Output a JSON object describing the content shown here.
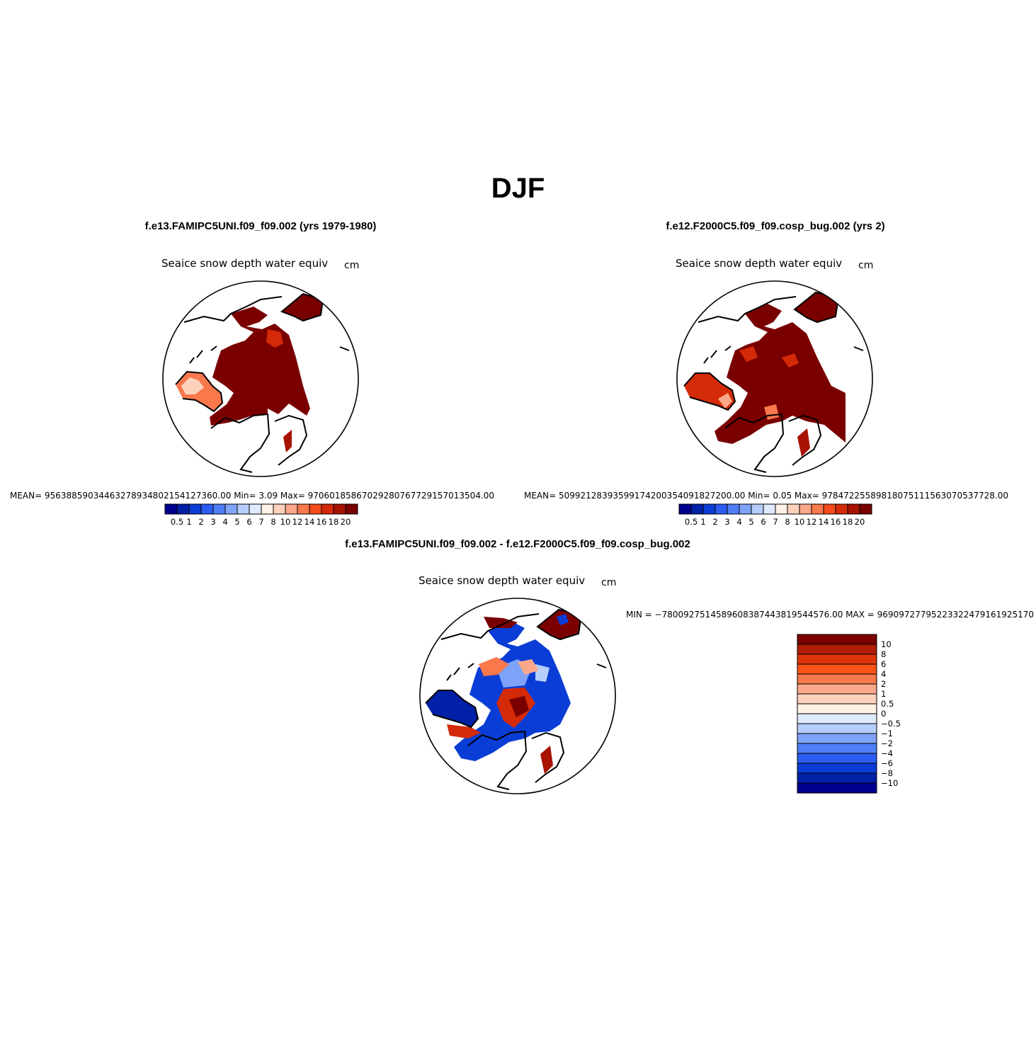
{
  "figure": {
    "title": "DJF"
  },
  "panels": [
    {
      "case_title": "f.e13.FAMIPC5UNI.f09_f09.002 (yrs 1979-1980)",
      "variable": "Seaice snow depth water equiv",
      "units": "cm",
      "stats": "MEAN= 95638859034463278934802154127360.00   Min=      3.09    Max= 97060185867029280767729157013504.00"
    },
    {
      "case_title": "f.e12.F2000C5.f09_f09.cosp_bug.002 (yrs 2)",
      "variable": "Seaice snow depth water equiv",
      "units": "cm",
      "stats": "MEAN= 50992128393599174200354091827200.00   Min=      0.05    Max= 97847225589818075111563070537728.00"
    },
    {
      "case_title": "f.e13.FAMIPC5UNI.f09_f09.002 - f.e12.F2000C5.f09_f09.cosp_bug.002",
      "variable": "Seaice snow depth water equiv",
      "units": "cm",
      "stats": "MIN = −7800927514589608387443819544576.00  MAX = 96909727795223322479161925170"
    }
  ],
  "colorbar_abs": {
    "labels": [
      "0.5",
      "1",
      "2",
      "3",
      "4",
      "5",
      "6",
      "7",
      "8",
      "10",
      "12",
      "14",
      "16",
      "18",
      "20"
    ],
    "colors": [
      "#00008f",
      "#0020a8",
      "#0a3dd6",
      "#2c5cf2",
      "#4f7ef7",
      "#7ea3f8",
      "#b5cdfa",
      "#dfeafc",
      "#fff1e4",
      "#fcd2bd",
      "#fba88a",
      "#f9784c",
      "#f44a1c",
      "#d42a08",
      "#a81200",
      "#7a0000"
    ]
  },
  "colorbar_diff": {
    "labels": [
      "10",
      "8",
      "6",
      "4",
      "2",
      "1",
      "0.5",
      "0",
      "−0.5",
      "−1",
      "−2",
      "−4",
      "−6",
      "−8",
      "−10"
    ],
    "colors": [
      "#7a0000",
      "#b01e05",
      "#de340a",
      "#f85317",
      "#f9784c",
      "#fba88a",
      "#fcd2bd",
      "#fff1e4",
      "#dfeafc",
      "#b5cdfa",
      "#7ea3f8",
      "#4f7ef7",
      "#2c5cf2",
      "#0a3dd6",
      "#0020a8",
      "#00008f"
    ]
  },
  "chart_data": [
    {
      "type": "heatmap",
      "title": "Seaice snow depth water equiv",
      "subtitle": "f.e13.FAMIPC5UNI.f09_f09.002 (yrs 1979-1980)",
      "units": "cm",
      "projection": "north polar stereographic",
      "color_levels": [
        0.5,
        1,
        2,
        3,
        4,
        5,
        6,
        7,
        8,
        10,
        12,
        14,
        16,
        18,
        20
      ],
      "min": 3.09,
      "mean": "95638859034463278934802154127360.00",
      "max": "97060185867029280767729157013504.00"
    },
    {
      "type": "heatmap",
      "title": "Seaice snow depth water equiv",
      "subtitle": "f.e12.F2000C5.f09_f09.cosp_bug.002 (yrs 2)",
      "units": "cm",
      "projection": "north polar stereographic",
      "color_levels": [
        0.5,
        1,
        2,
        3,
        4,
        5,
        6,
        7,
        8,
        10,
        12,
        14,
        16,
        18,
        20
      ],
      "min": 0.05,
      "mean": "50992128393599174200354091827200.00",
      "max": "97847225589818075111563070537728.00"
    },
    {
      "type": "heatmap",
      "title": "Seaice snow depth water equiv",
      "subtitle": "f.e13.FAMIPC5UNI.f09_f09.002 - f.e12.F2000C5.f09_f09.cosp_bug.002",
      "units": "cm",
      "projection": "north polar stereographic",
      "color_levels": [
        -10,
        -8,
        -6,
        -4,
        -2,
        -1,
        -0.5,
        0,
        0.5,
        1,
        2,
        4,
        6,
        8,
        10
      ],
      "min": "−7800927514589608387443819544576.00",
      "max": "96909727795223322479161925170"
    }
  ]
}
